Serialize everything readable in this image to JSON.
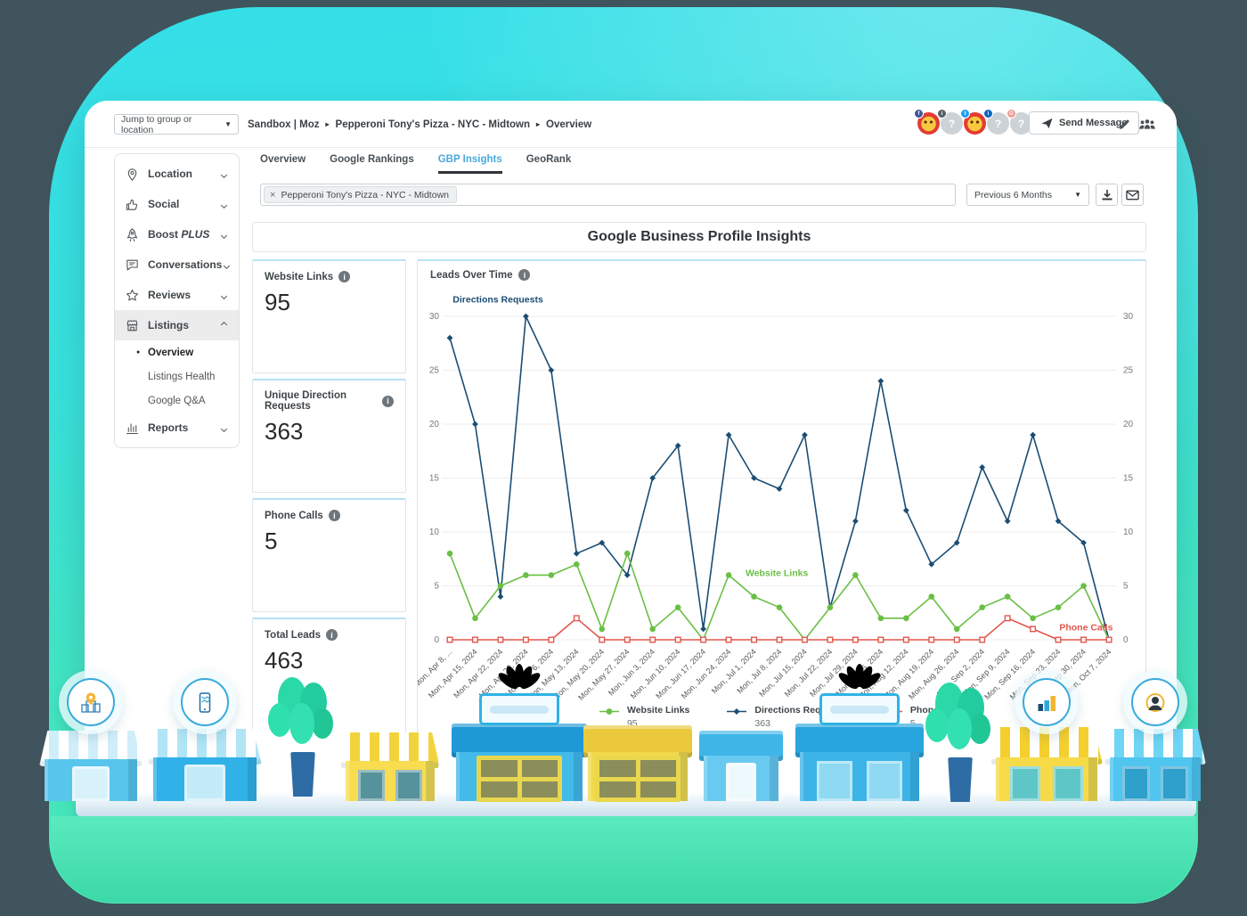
{
  "topbar": {
    "jump_placeholder": "Jump to group or location",
    "breadcrumb": [
      "Sandbox | Moz",
      "Pepperoni Tony's Pizza - NYC - Midtown",
      "Overview"
    ],
    "send_message_label": "Send Message",
    "avatars": [
      {
        "type": "brand",
        "badge": "facebook",
        "badge_color": "#3b5998",
        "badge_glyph": "f"
      },
      {
        "type": "unknown",
        "badge": "instagram",
        "badge_color": "#55606a",
        "badge_glyph": "ig"
      },
      {
        "type": "brand",
        "badge": "twitter",
        "badge_color": "#1da1f2",
        "badge_glyph": "t"
      },
      {
        "type": "unknown",
        "badge": "linkedin",
        "badge_color": "#0a66c2",
        "badge_glyph": "in"
      },
      {
        "type": "unknown",
        "badge": "google",
        "badge_color": "#ef9a94",
        "badge_glyph": "G"
      }
    ]
  },
  "sidebar": {
    "items": [
      {
        "label": "Location",
        "icon": "location-pin-icon",
        "state": "collapsed"
      },
      {
        "label": "Social",
        "icon": "thumbs-up-icon",
        "state": "collapsed"
      },
      {
        "label": "Boost",
        "suffix": "PLUS",
        "icon": "rocket-icon",
        "state": "collapsed"
      },
      {
        "label": "Conversations",
        "icon": "chat-bubble-icon",
        "state": "collapsed"
      },
      {
        "label": "Reviews",
        "icon": "star-icon",
        "state": "collapsed"
      },
      {
        "label": "Listings",
        "icon": "storefront-icon",
        "state": "expanded",
        "active": true,
        "children": [
          {
            "label": "Overview",
            "active": true
          },
          {
            "label": "Listings Health"
          },
          {
            "label": "Google Q&A"
          }
        ]
      },
      {
        "label": "Reports",
        "icon": "bar-chart-icon",
        "state": "collapsed"
      }
    ]
  },
  "tabs": [
    {
      "label": "Overview"
    },
    {
      "label": "Google Rankings"
    },
    {
      "label": "GBP Insights",
      "active": true
    },
    {
      "label": "GeoRank"
    }
  ],
  "filter": {
    "chip": "Pepperoni Tony's Pizza - NYC - Midtown",
    "period": "Previous 6 Months",
    "actions": [
      "download-icon",
      "email-icon"
    ]
  },
  "page_title": "Google Business Profile Insights",
  "stat_cards": [
    {
      "label": "Website Links",
      "value": "95"
    },
    {
      "label": "Unique Direction Requests",
      "value": "363"
    },
    {
      "label": "Phone Calls",
      "value": "5"
    },
    {
      "label": "Total Leads",
      "value": "463"
    }
  ],
  "chart_data": {
    "type": "line",
    "title": "Leads Over Time",
    "x": [
      "Mon, Apr 8, ...",
      "Mon, Apr 15, 2024",
      "Mon, Apr 22, 2024",
      "Mon, Apr 29, 2024",
      "Mon, May 6, 2024",
      "Mon, May 13, 2024",
      "Mon, May 20, 2024",
      "Mon, May 27, 2024",
      "Mon, Jun 3, 2024",
      "Mon, Jun 10, 2024",
      "Mon, Jun 17, 2024",
      "Mon, Jun 24, 2024",
      "Mon, Jul 1, 2024",
      "Mon, Jul 8, 2024",
      "Mon, Jul 15, 2024",
      "Mon, Jul 22, 2024",
      "Mon, Jul 29, 2024",
      "Mon, Aug 5, 2024",
      "Mon, Aug 12, 2024",
      "Mon, Aug 19, 2024",
      "Mon, Aug 26, 2024",
      "Mon, Sep 2, 2024",
      "Mon, Sep 9, 2024",
      "Mon, Sep 16, 2024",
      "Mon, Sep 23, 2024",
      "Mon, Sep 30, 2024",
      "Mon, Oct 7, 2024"
    ],
    "ylim": [
      0,
      30
    ],
    "yticks": [
      0,
      5,
      10,
      15,
      20,
      25,
      30
    ],
    "grid": true,
    "series": [
      {
        "name": "Directions Requests",
        "total": "363",
        "color": "#1b4d73",
        "marker": "diamond",
        "values": [
          28,
          20,
          4,
          30,
          25,
          8,
          9,
          6,
          15,
          18,
          1,
          19,
          15,
          14,
          19,
          3,
          11,
          24,
          12,
          7,
          9,
          16,
          11,
          19,
          11,
          9,
          0
        ]
      },
      {
        "name": "Website Links",
        "total": "95",
        "color": "#6abf45",
        "marker": "circle",
        "values": [
          8,
          2,
          5,
          6,
          6,
          7,
          1,
          8,
          1,
          3,
          0,
          6,
          4,
          3,
          0,
          3,
          6,
          2,
          2,
          4,
          1,
          3,
          4,
          2,
          3,
          5,
          0
        ]
      },
      {
        "name": "Phone Calls",
        "total": "5",
        "color": "#e2574b",
        "marker": "square",
        "values": [
          0,
          0,
          0,
          0,
          0,
          2,
          0,
          0,
          0,
          0,
          0,
          0,
          0,
          0,
          0,
          0,
          0,
          0,
          0,
          0,
          0,
          0,
          2,
          1,
          0,
          0,
          0
        ]
      }
    ],
    "legend_order": [
      "Website Links",
      "Directions Requests",
      "Phone Calls"
    ],
    "inline_labels": [
      {
        "text": "Directions Requests",
        "series": "Directions Requests",
        "xi": 1.9,
        "y": 31.3
      },
      {
        "text": "Website Links",
        "series": "Website Links",
        "xi": 12.9,
        "y": 5.9
      },
      {
        "text": "Phone Calls",
        "series": "Phone Calls",
        "xi": 25.1,
        "y": 0.85
      }
    ]
  }
}
